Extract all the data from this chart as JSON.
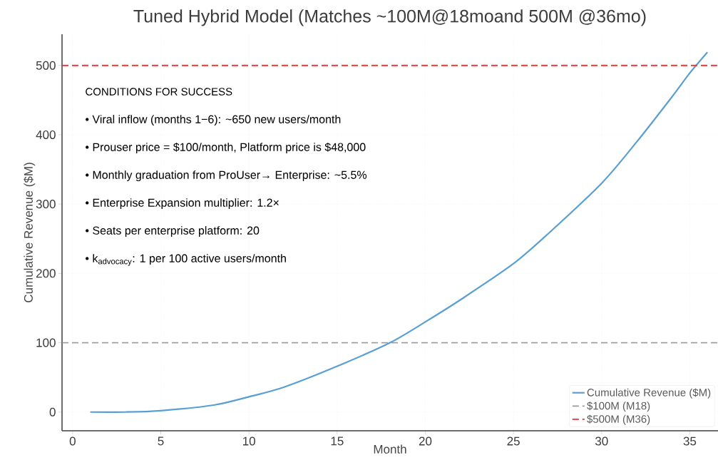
{
  "chart_data": {
    "type": "line",
    "title": "Tuned Hybrid Model (Matches ~100M@18moand 500M @36mo)",
    "xlabel": "Month",
    "ylabel": "Cumulative Revenue ($M)",
    "x": [
      1,
      3,
      5,
      8,
      10,
      12,
      15,
      18,
      20,
      22,
      25,
      27,
      30,
      32,
      34,
      35,
      36
    ],
    "series": [
      {
        "name": "Cumulative Revenue ($M)",
        "color": "#5a9fd4",
        "values": [
          0,
          0,
          2,
          10,
          22,
          36,
          66,
          100,
          130,
          162,
          214,
          258,
          330,
          390,
          455,
          489,
          519
        ]
      }
    ],
    "xlim": [
      -0.6,
      36.6
    ],
    "ylim": [
      -27,
      545
    ],
    "xticks": [
      0,
      5,
      10,
      15,
      20,
      25,
      30,
      35
    ],
    "yticks": [
      0,
      100,
      200,
      300,
      400,
      500
    ],
    "ref_lines": [
      {
        "axis": "y",
        "value": 100,
        "label": "$100M (M18)",
        "color": "#999999",
        "line_style": "dashed"
      },
      {
        "axis": "y",
        "value": 500,
        "label": "$500M (M36)",
        "color": "#ff2a2a",
        "line_style": "dashed"
      }
    ],
    "annotations": [
      "CONDITIONS FOR SUCCESS",
      "• Viral inflow (months 1−6): ~650 new users/month",
      "• Prouser price = $100/month, Platform price is $48,000",
      "• Monthly graduation from ProUser→ Enterprise: ~5.5%",
      "• Enterprise Expansion multiplier: 1.2×",
      "• Seats per enterprise platform: 20",
      "• k$_{advocacy}$: 1 per 100 active users/month"
    ],
    "grid": true,
    "legend": "bottom right",
    "line_style": "solid",
    "marker": "none"
  }
}
